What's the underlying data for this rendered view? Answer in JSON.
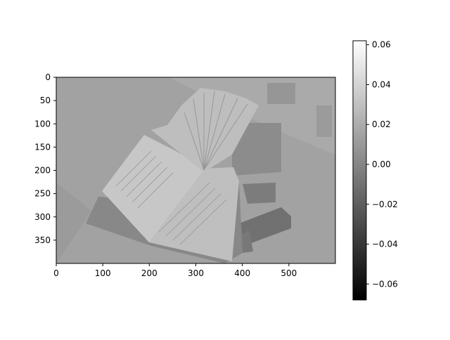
{
  "chart_data": {
    "type": "heatmap",
    "title": "",
    "xlabel": "",
    "ylabel": "",
    "image": {
      "description_colormap": "gray",
      "width": 600,
      "height": 400
    },
    "x_ticks": [
      0,
      100,
      200,
      300,
      400,
      500
    ],
    "y_ticks": [
      0,
      50,
      100,
      150,
      200,
      250,
      300,
      350
    ],
    "xlim": [
      0,
      600
    ],
    "ylim": [
      400,
      0
    ],
    "colorbar": {
      "range": [
        -0.068,
        0.062
      ],
      "ticks": [
        -0.06,
        -0.04,
        -0.02,
        0.0,
        0.02,
        0.04,
        0.06
      ],
      "tick_labels": [
        "−0.06",
        "−0.04",
        "−0.02",
        "0.00",
        "0.02",
        "0.04",
        "0.06"
      ],
      "colormap": "gray"
    },
    "grid": false
  }
}
